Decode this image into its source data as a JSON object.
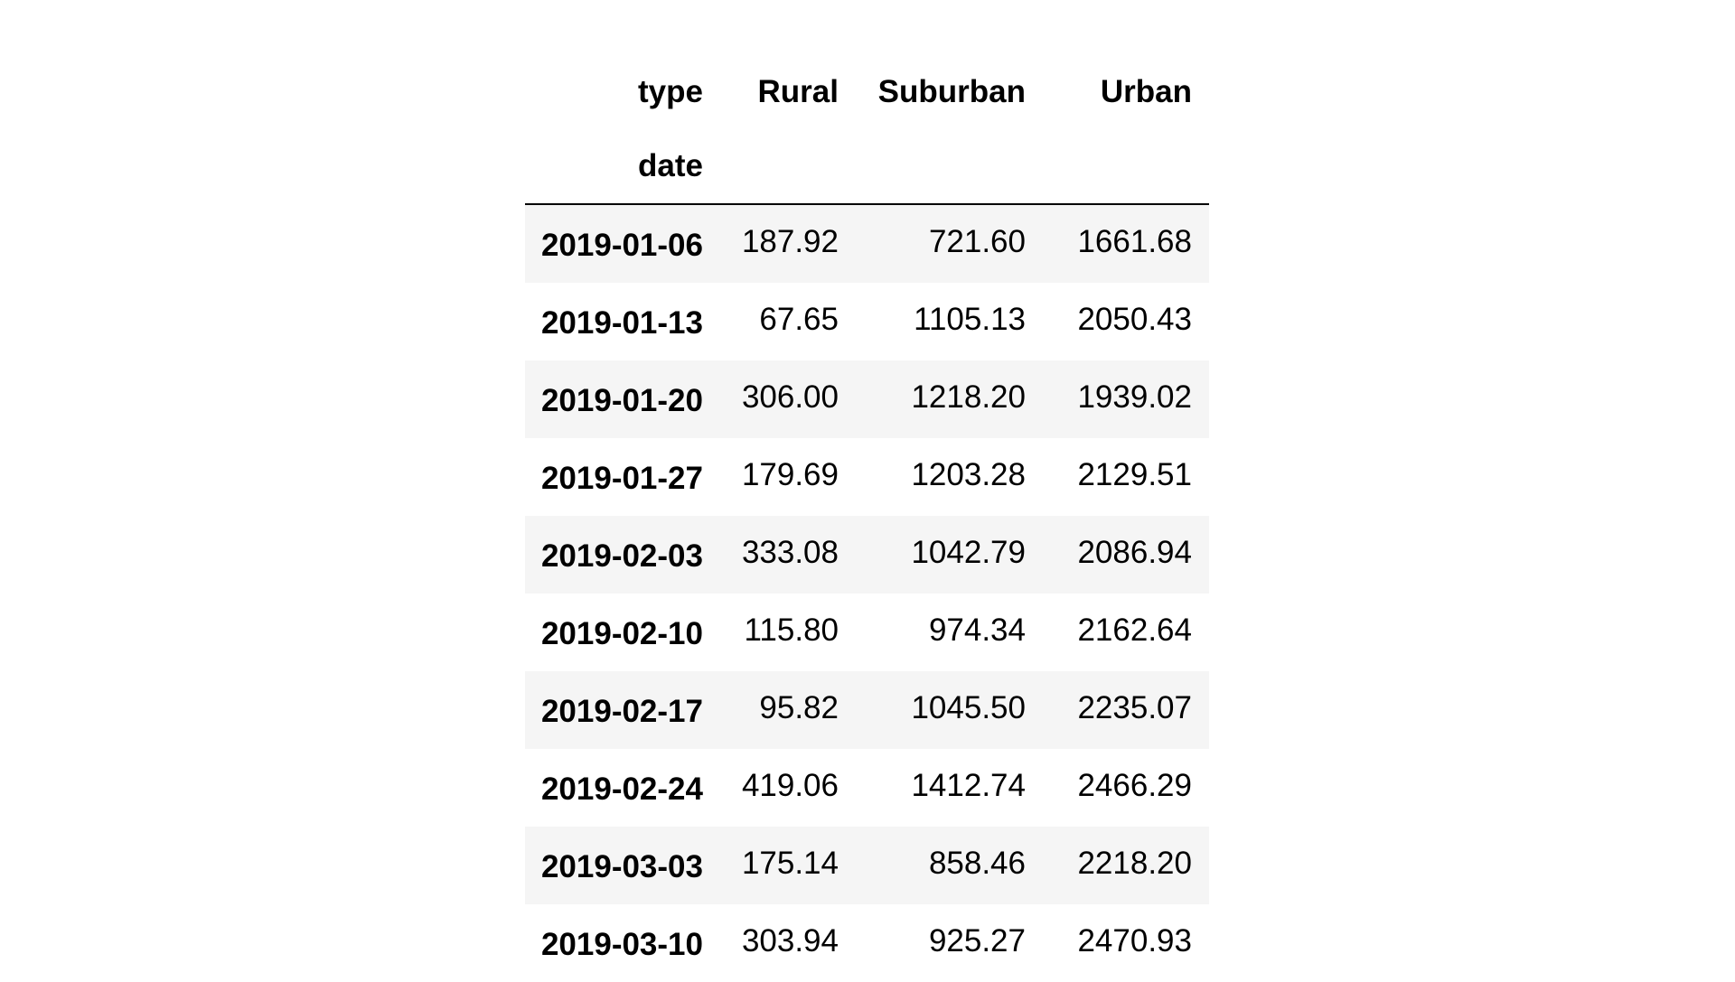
{
  "table": {
    "columns_name": "type",
    "index_name": "date",
    "columns": [
      "Rural",
      "Suburban",
      "Urban"
    ],
    "rows": [
      {
        "date": "2019-01-06",
        "values": [
          "187.92",
          "721.60",
          "1661.68"
        ]
      },
      {
        "date": "2019-01-13",
        "values": [
          "67.65",
          "1105.13",
          "2050.43"
        ]
      },
      {
        "date": "2019-01-20",
        "values": [
          "306.00",
          "1218.20",
          "1939.02"
        ]
      },
      {
        "date": "2019-01-27",
        "values": [
          "179.69",
          "1203.28",
          "2129.51"
        ]
      },
      {
        "date": "2019-02-03",
        "values": [
          "333.08",
          "1042.79",
          "2086.94"
        ]
      },
      {
        "date": "2019-02-10",
        "values": [
          "115.80",
          "974.34",
          "2162.64"
        ]
      },
      {
        "date": "2019-02-17",
        "values": [
          "95.82",
          "1045.50",
          "2235.07"
        ]
      },
      {
        "date": "2019-02-24",
        "values": [
          "419.06",
          "1412.74",
          "2466.29"
        ]
      },
      {
        "date": "2019-03-03",
        "values": [
          "175.14",
          "858.46",
          "2218.20"
        ]
      },
      {
        "date": "2019-03-10",
        "values": [
          "303.94",
          "925.27",
          "2470.93"
        ]
      }
    ]
  },
  "colors": {
    "stripe": "#f5f5f5",
    "background": "#ffffff",
    "rule": "#000000"
  }
}
